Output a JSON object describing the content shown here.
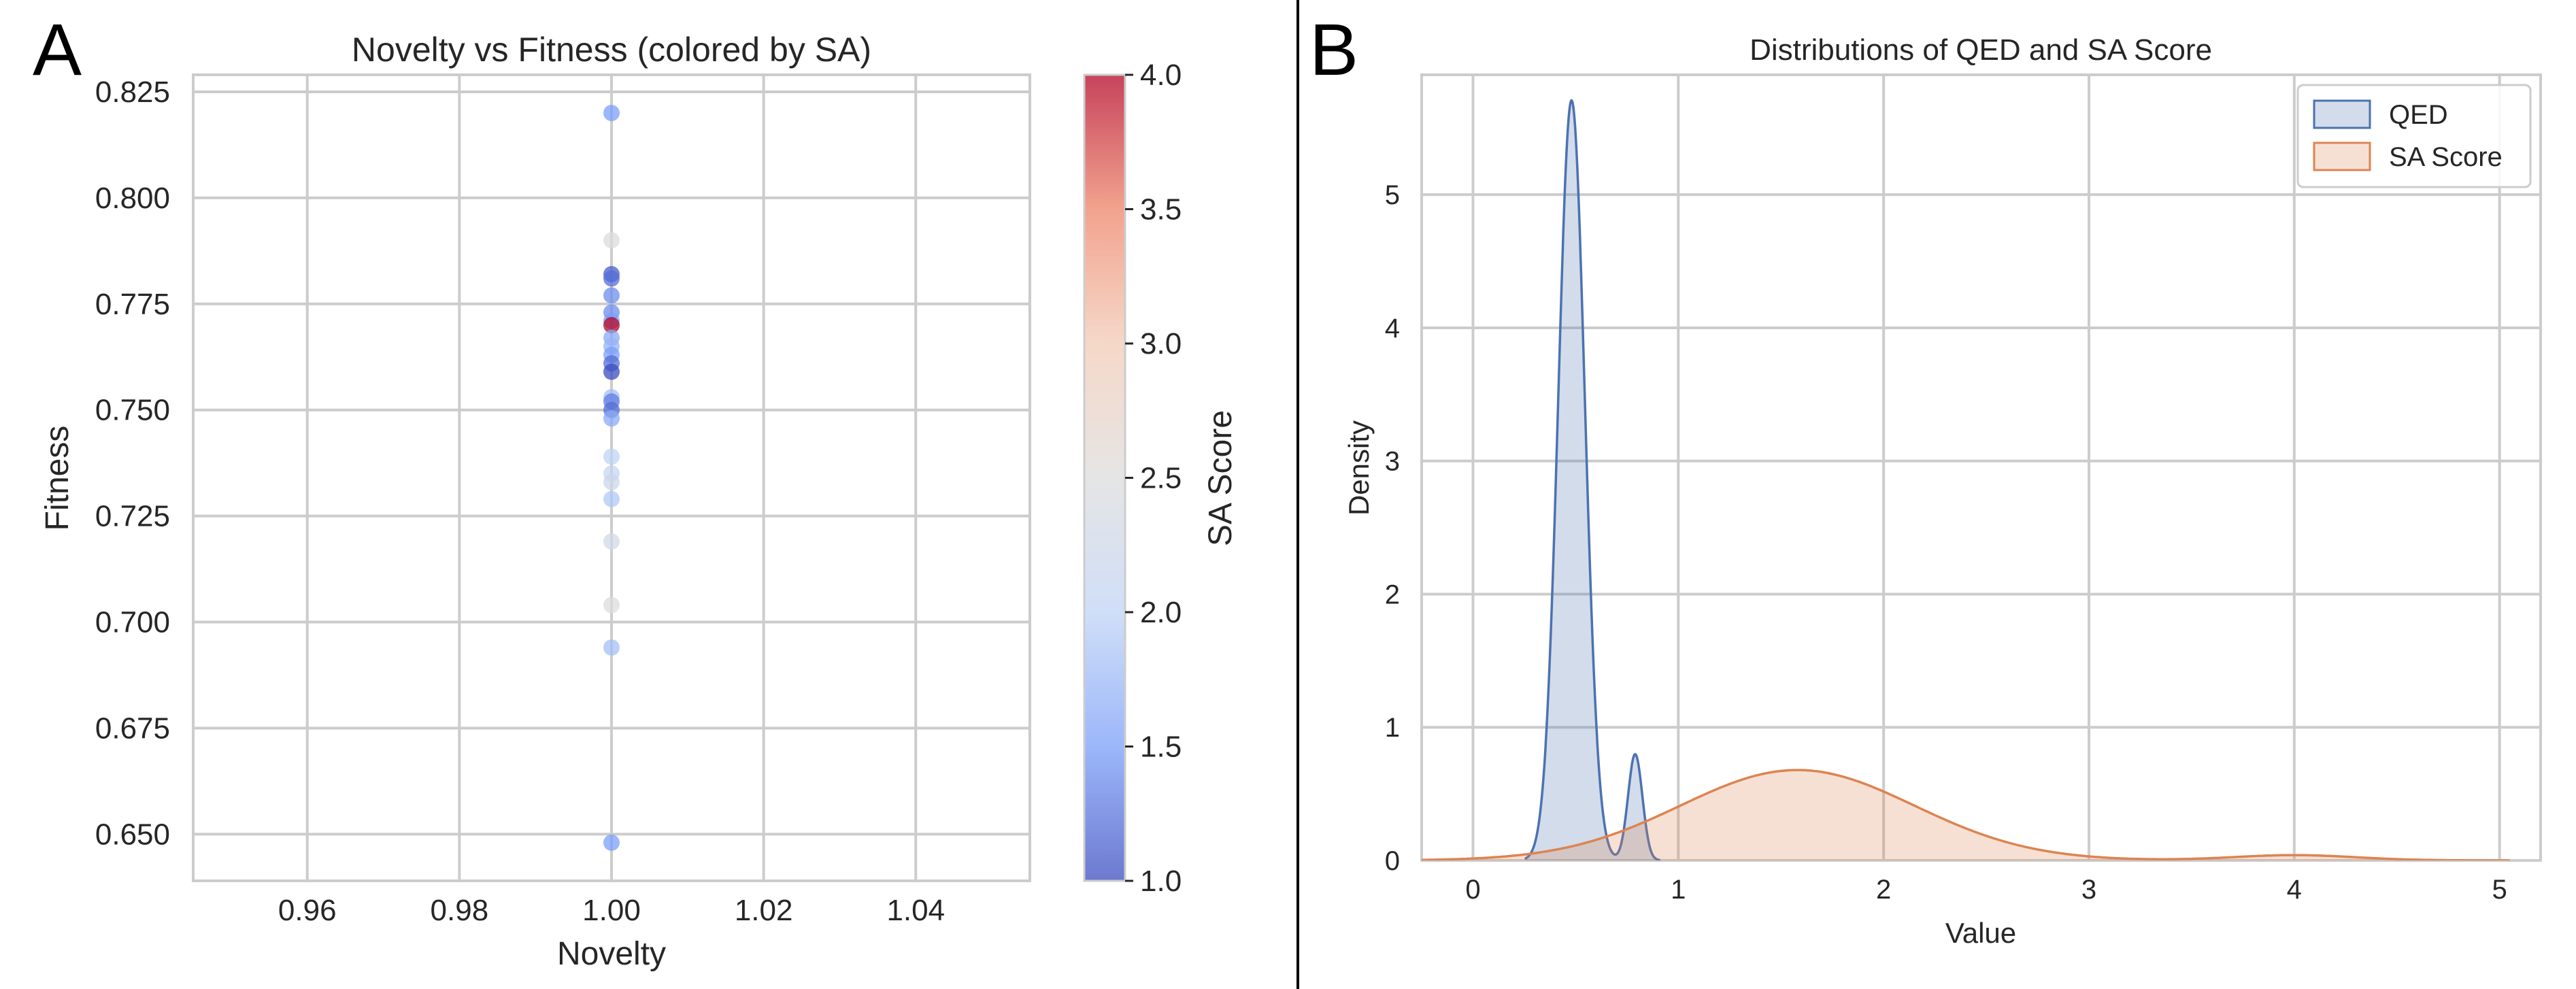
{
  "chart_data": [
    {
      "panel": "A",
      "type": "scatter",
      "title": "Novelty vs Fitness (colored by SA)",
      "xlabel": "Novelty",
      "ylabel": "Fitness",
      "xlim": [
        0.945,
        1.055
      ],
      "ylim": [
        0.639,
        0.829
      ],
      "xticks": [
        0.96,
        0.98,
        1.0,
        1.02,
        1.04
      ],
      "xtick_labels": [
        "0.96",
        "0.98",
        "1.00",
        "1.02",
        "1.04"
      ],
      "yticks": [
        0.65,
        0.675,
        0.7,
        0.725,
        0.75,
        0.775,
        0.8,
        0.825
      ],
      "ytick_labels": [
        "0.650",
        "0.675",
        "0.700",
        "0.725",
        "0.750",
        "0.775",
        "0.800",
        "0.825"
      ],
      "grid": true,
      "colorbar": {
        "label": "SA Score",
        "range": [
          1.0,
          4.0
        ],
        "ticks": [
          1.0,
          1.5,
          2.0,
          2.5,
          3.0,
          3.5,
          4.0
        ],
        "tick_labels": [
          "1.0",
          "1.5",
          "2.0",
          "2.5",
          "3.0",
          "3.5",
          "4.0"
        ],
        "colormap": "coolwarm",
        "colors": [
          "#3b4cc0",
          "#7b9ff9",
          "#c0d4f5",
          "#dddcdc",
          "#f2cbb7",
          "#ee8468",
          "#b40426"
        ]
      },
      "points": [
        {
          "x": 1.0,
          "y": 0.82,
          "sa": 1.5
        },
        {
          "x": 1.0,
          "y": 0.79,
          "sa": 2.5
        },
        {
          "x": 1.0,
          "y": 0.782,
          "sa": 1.1
        },
        {
          "x": 1.0,
          "y": 0.781,
          "sa": 1.2
        },
        {
          "x": 1.0,
          "y": 0.777,
          "sa": 1.4
        },
        {
          "x": 1.0,
          "y": 0.773,
          "sa": 1.4
        },
        {
          "x": 1.0,
          "y": 0.771,
          "sa": 1.5
        },
        {
          "x": 1.0,
          "y": 0.77,
          "sa": 4.0
        },
        {
          "x": 1.0,
          "y": 0.767,
          "sa": 1.6
        },
        {
          "x": 1.0,
          "y": 0.765,
          "sa": 1.7
        },
        {
          "x": 1.0,
          "y": 0.763,
          "sa": 1.5
        },
        {
          "x": 1.0,
          "y": 0.761,
          "sa": 1.2
        },
        {
          "x": 1.0,
          "y": 0.759,
          "sa": 1.0
        },
        {
          "x": 1.0,
          "y": 0.753,
          "sa": 1.8
        },
        {
          "x": 1.0,
          "y": 0.752,
          "sa": 1.3
        },
        {
          "x": 1.0,
          "y": 0.75,
          "sa": 1.2
        },
        {
          "x": 1.0,
          "y": 0.748,
          "sa": 1.6
        },
        {
          "x": 1.0,
          "y": 0.739,
          "sa": 2.0
        },
        {
          "x": 1.0,
          "y": 0.735,
          "sa": 2.1
        },
        {
          "x": 1.0,
          "y": 0.733,
          "sa": 2.2
        },
        {
          "x": 1.0,
          "y": 0.729,
          "sa": 1.9
        },
        {
          "x": 1.0,
          "y": 0.719,
          "sa": 2.3
        },
        {
          "x": 1.0,
          "y": 0.704,
          "sa": 2.5
        },
        {
          "x": 1.0,
          "y": 0.694,
          "sa": 1.8
        },
        {
          "x": 1.0,
          "y": 0.648,
          "sa": 1.5
        }
      ]
    },
    {
      "panel": "B",
      "type": "area",
      "title": "Distributions of QED and SA Score",
      "xlabel": "Value",
      "ylabel": "Density",
      "xlim": [
        -0.25,
        5.2
      ],
      "ylim": [
        0,
        5.9
      ],
      "xticks": [
        0,
        1,
        2,
        3,
        4,
        5
      ],
      "xtick_labels": [
        "0",
        "1",
        "2",
        "3",
        "4",
        "5"
      ],
      "yticks": [
        0,
        1,
        2,
        3,
        4,
        5
      ],
      "ytick_labels": [
        "0",
        "1",
        "2",
        "3",
        "4",
        "5"
      ],
      "grid": true,
      "legend_position": "top-right",
      "series": [
        {
          "name": "QED",
          "line_color": "#4c72b0",
          "fill_color": "#4c72b0",
          "fill_opacity": 0.25,
          "components": [
            {
              "weight": 0.93,
              "mean": 0.48,
              "sd": 0.065
            },
            {
              "weight": 0.07,
              "mean": 0.79,
              "sd": 0.035
            }
          ]
        },
        {
          "name": "SA Score",
          "line_color": "#dd8452",
          "fill_color": "#dd8452",
          "fill_opacity": 0.25,
          "components": [
            {
              "weight": 0.97,
              "mean": 1.58,
              "sd": 0.57
            },
            {
              "weight": 0.03,
              "mean": 4.0,
              "sd": 0.3
            }
          ]
        }
      ]
    }
  ],
  "panel_labels": [
    "A",
    "B"
  ]
}
